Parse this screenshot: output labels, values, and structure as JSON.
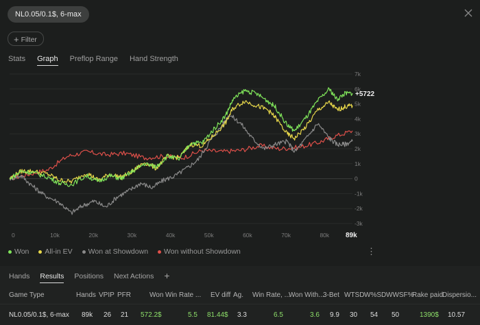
{
  "header": {
    "game_pill": "NL0.05/0.1$, 6-max",
    "filter_label": "Filter"
  },
  "tabs": [
    "Stats",
    "Graph",
    "Preflop Range",
    "Hand Strength"
  ],
  "active_tab": "Graph",
  "chart_data": {
    "type": "line",
    "x_axis": {
      "min": 0,
      "max": 89000,
      "ticks": [
        "0",
        "10k",
        "20k",
        "30k",
        "40k",
        "50k",
        "60k",
        "70k",
        "80k"
      ],
      "end_label": "89k"
    },
    "y_axis": {
      "min": -3000,
      "max": 7000,
      "ticks": [
        "7k",
        "6k",
        "5k",
        "4k",
        "3k",
        "2k",
        "1k",
        "0",
        "-1k",
        "-2k",
        "-3k"
      ]
    },
    "end_value_label": "+5722",
    "series": [
      {
        "name": "Won",
        "color": "#7fe35a",
        "points": [
          [
            0,
            0
          ],
          [
            3000,
            500
          ],
          [
            6000,
            400
          ],
          [
            10000,
            100
          ],
          [
            13000,
            -300
          ],
          [
            16000,
            -400
          ],
          [
            20000,
            200
          ],
          [
            23000,
            -200
          ],
          [
            26000,
            200
          ],
          [
            29000,
            0
          ],
          [
            32000,
            500
          ],
          [
            35000,
            1000
          ],
          [
            38000,
            800
          ],
          [
            41000,
            1500
          ],
          [
            44000,
            1300
          ],
          [
            47000,
            2400
          ],
          [
            50000,
            2400
          ],
          [
            53000,
            3300
          ],
          [
            56000,
            4200
          ],
          [
            58000,
            5300
          ],
          [
            61000,
            5900
          ],
          [
            64000,
            5700
          ],
          [
            67000,
            5200
          ],
          [
            69000,
            4800
          ],
          [
            72000,
            3600
          ],
          [
            74000,
            3200
          ],
          [
            77000,
            4100
          ],
          [
            80000,
            5200
          ],
          [
            83000,
            6000
          ],
          [
            85000,
            5300
          ],
          [
            87000,
            5700
          ],
          [
            89000,
            5722
          ]
        ]
      },
      {
        "name": "All-in EV",
        "color": "#e8d84a",
        "points": [
          [
            0,
            0
          ],
          [
            3000,
            500
          ],
          [
            6000,
            500
          ],
          [
            10000,
            300
          ],
          [
            13000,
            -100
          ],
          [
            16000,
            -200
          ],
          [
            20000,
            400
          ],
          [
            23000,
            -100
          ],
          [
            26000,
            300
          ],
          [
            29000,
            100
          ],
          [
            32000,
            500
          ],
          [
            35000,
            1100
          ],
          [
            38000,
            700
          ],
          [
            41000,
            1500
          ],
          [
            44000,
            1400
          ],
          [
            47000,
            2300
          ],
          [
            50000,
            2200
          ],
          [
            53000,
            2900
          ],
          [
            56000,
            3700
          ],
          [
            58000,
            4700
          ],
          [
            61000,
            5200
          ],
          [
            64000,
            4900
          ],
          [
            67000,
            4600
          ],
          [
            69000,
            4100
          ],
          [
            72000,
            3000
          ],
          [
            74000,
            2700
          ],
          [
            77000,
            3500
          ],
          [
            80000,
            4600
          ],
          [
            83000,
            5100
          ],
          [
            85000,
            4600
          ],
          [
            87000,
            4800
          ],
          [
            89000,
            4900
          ]
        ]
      },
      {
        "name": "Won at Showdown",
        "color": "#8a8a8a",
        "points": [
          [
            0,
            0
          ],
          [
            3000,
            200
          ],
          [
            6000,
            -500
          ],
          [
            9000,
            -1100
          ],
          [
            13000,
            -1600
          ],
          [
            16000,
            -2300
          ],
          [
            19000,
            -1800
          ],
          [
            22000,
            -1500
          ],
          [
            25000,
            -1900
          ],
          [
            28000,
            -1200
          ],
          [
            31000,
            -800
          ],
          [
            34000,
            -300
          ],
          [
            37000,
            -600
          ],
          [
            40000,
            -100
          ],
          [
            43000,
            200
          ],
          [
            46000,
            700
          ],
          [
            49000,
            1300
          ],
          [
            52000,
            2500
          ],
          [
            55000,
            3500
          ],
          [
            57000,
            4300
          ],
          [
            60000,
            3700
          ],
          [
            63000,
            2700
          ],
          [
            66000,
            2000
          ],
          [
            69000,
            2300
          ],
          [
            72000,
            2500
          ],
          [
            74000,
            1800
          ],
          [
            77000,
            2700
          ],
          [
            80000,
            3700
          ],
          [
            83000,
            2700
          ],
          [
            85000,
            2300
          ],
          [
            87000,
            2300
          ],
          [
            89000,
            2500
          ]
        ]
      },
      {
        "name": "Won without Showdown",
        "color": "#e0504a",
        "points": [
          [
            0,
            0
          ],
          [
            5000,
            300
          ],
          [
            10000,
            600
          ],
          [
            15000,
            1500
          ],
          [
            20000,
            1800
          ],
          [
            25000,
            1600
          ],
          [
            30000,
            1700
          ],
          [
            35000,
            1400
          ],
          [
            40000,
            1500
          ],
          [
            45000,
            1400
          ],
          [
            50000,
            1900
          ],
          [
            55000,
            1800
          ],
          [
            60000,
            1900
          ],
          [
            65000,
            2200
          ],
          [
            70000,
            2000
          ],
          [
            75000,
            2100
          ],
          [
            80000,
            2400
          ],
          [
            84000,
            2800
          ],
          [
            89000,
            3200
          ]
        ]
      }
    ]
  },
  "legend": [
    "Won",
    "All-in EV",
    "Won at Showdown",
    "Won without Showdown"
  ],
  "bottom_tabs": [
    "Hands",
    "Results",
    "Positions",
    "Next Actions"
  ],
  "active_bottom_tab": "Results",
  "table": {
    "headers": [
      "Game Type",
      "Hands",
      "VPIP",
      "PFR",
      "Won",
      "Win Rate ...",
      "EV diff",
      "Ag.",
      "Win Rate, ...",
      "Won With...",
      "3-Bet",
      "WTSD",
      "W%SD",
      "WWSF%",
      "Rake paid",
      "Dispersio..."
    ],
    "row": [
      "NL0.05/0.1$, 6-max",
      "89k",
      "26",
      "21",
      "572.2$",
      "5.5",
      "81.44$",
      "3.3",
      "6.5",
      "3.6",
      "9.9",
      "30",
      "54",
      "50",
      "1390$",
      "10.57"
    ]
  }
}
